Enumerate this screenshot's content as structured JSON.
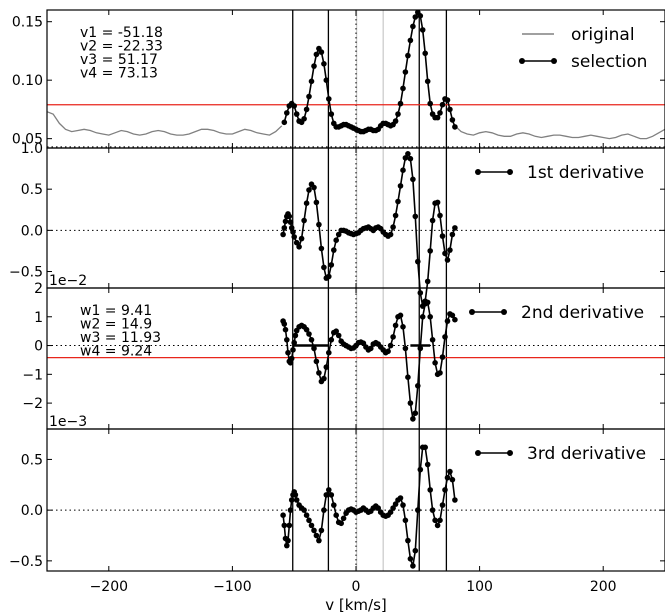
{
  "chart_data": {
    "type": "line",
    "x_axis": {
      "label": "v [km/s]",
      "range": [
        -250,
        250
      ],
      "ticks": [
        -200,
        -100,
        0,
        100,
        200
      ],
      "tick_labels": [
        "−200",
        "−100",
        "0",
        "100",
        "200"
      ]
    },
    "marker_lines": {
      "solid_vertical_x": [
        -51.18,
        -22.33,
        51.17,
        73.13
      ],
      "dotted_vertical_x": [
        0
      ],
      "light_vertical_x": [
        0.5,
        22
      ]
    },
    "colors": {
      "original": "#808080",
      "selection": "#000000",
      "threshold": "#e8251b",
      "light_marker": "#c8c8c8"
    },
    "panels": [
      {
        "id": "spectrum",
        "ylim": [
          0.042,
          0.16
        ],
        "yticks": [
          0.05,
          0.1,
          0.15
        ],
        "ytick_labels": [
          "0.05",
          "0.10",
          "0.15"
        ],
        "offset_label": "",
        "zero_line": 0.043,
        "threshold": 0.079,
        "annotations": [
          "v1 = -51.18",
          "v2 = -22.33",
          "v3 = 51.17",
          "v4 = 73.13"
        ],
        "legend": [
          {
            "label": "original",
            "style": "line",
            "color": "#808080"
          },
          {
            "label": "selection",
            "style": "line-marker",
            "color": "#000000"
          }
        ],
        "series": [
          {
            "role": "original",
            "x": [
              -250,
              -245,
              -240,
              -235,
              -230,
              -225,
              -220,
              -215,
              -210,
              -205,
              -200,
              -195,
              -190,
              -185,
              -180,
              -175,
              -170,
              -165,
              -160,
              -155,
              -150,
              -145,
              -140,
              -135,
              -130,
              -125,
              -120,
              -115,
              -110,
              -105,
              -100,
              -95,
              -90,
              -85,
              -80,
              -75,
              -70,
              -65,
              -60,
              80,
              85,
              90,
              95,
              100,
              105,
              110,
              115,
              120,
              125,
              130,
              135,
              140,
              145,
              150,
              155,
              160,
              165,
              170,
              175,
              180,
              185,
              190,
              195,
              200,
              205,
              210,
              215,
              220,
              225,
              230,
              235,
              240,
              245,
              250
            ],
            "y": [
              0.073,
              0.071,
              0.063,
              0.058,
              0.056,
              0.057,
              0.058,
              0.057,
              0.055,
              0.054,
              0.053,
              0.055,
              0.057,
              0.056,
              0.054,
              0.053,
              0.054,
              0.056,
              0.057,
              0.056,
              0.054,
              0.053,
              0.053,
              0.054,
              0.056,
              0.058,
              0.058,
              0.057,
              0.055,
              0.054,
              0.054,
              0.056,
              0.058,
              0.057,
              0.055,
              0.054,
              0.053,
              0.056,
              0.061,
              0.061,
              0.056,
              0.054,
              0.053,
              0.055,
              0.056,
              0.055,
              0.053,
              0.052,
              0.052,
              0.054,
              0.055,
              0.054,
              0.052,
              0.051,
              0.052,
              0.053,
              0.053,
              0.052,
              0.051,
              0.051,
              0.052,
              0.053,
              0.052,
              0.051,
              0.05,
              0.051,
              0.053,
              0.054,
              0.052,
              0.05,
              0.05,
              0.052,
              0.055,
              0.058
            ]
          },
          {
            "role": "selection",
            "x": [
              -58,
              -56,
              -54,
              -52,
              -50,
              -48,
              -46,
              -44,
              -42,
              -40,
              -38,
              -36,
              -34,
              -32,
              -30,
              -28,
              -26,
              -24,
              -22,
              -20,
              -18,
              -16,
              -14,
              -12,
              -10,
              -8,
              -6,
              -4,
              -2,
              0,
              2,
              4,
              6,
              8,
              10,
              12,
              14,
              16,
              18,
              20,
              22,
              24,
              26,
              28,
              30,
              32,
              34,
              36,
              38,
              40,
              42,
              44,
              46,
              48,
              50,
              52,
              54,
              56,
              58,
              60,
              62,
              64,
              66,
              68,
              70,
              72,
              74,
              76,
              78,
              80
            ],
            "y": [
              0.064,
              0.072,
              0.078,
              0.08,
              0.078,
              0.071,
              0.065,
              0.064,
              0.067,
              0.075,
              0.086,
              0.099,
              0.112,
              0.122,
              0.127,
              0.124,
              0.114,
              0.1,
              0.084,
              0.071,
              0.063,
              0.06,
              0.06,
              0.061,
              0.062,
              0.062,
              0.061,
              0.06,
              0.059,
              0.058,
              0.057,
              0.056,
              0.056,
              0.057,
              0.058,
              0.058,
              0.057,
              0.057,
              0.058,
              0.061,
              0.063,
              0.063,
              0.062,
              0.061,
              0.062,
              0.065,
              0.071,
              0.08,
              0.093,
              0.107,
              0.121,
              0.134,
              0.146,
              0.154,
              0.158,
              0.155,
              0.143,
              0.123,
              0.099,
              0.08,
              0.071,
              0.068,
              0.068,
              0.072,
              0.079,
              0.084,
              0.083,
              0.075,
              0.066,
              0.06
            ]
          }
        ]
      },
      {
        "id": "d1",
        "ylim": [
          -0.7,
          1.0
        ],
        "yticks": [
          -0.5,
          0,
          0.5,
          1.0
        ],
        "ytick_labels": [
          "−0.5",
          "0.0",
          "0.5",
          "1.0"
        ],
        "offset_label": "1e−2",
        "zero_line": 0,
        "legend": [
          {
            "label": "1st derivative",
            "style": "line-marker",
            "color": "#000000"
          }
        ],
        "series": [
          {
            "role": "selection",
            "x": [
              -59,
              -58,
              -57,
              -56,
              -55,
              -54,
              -53,
              -52,
              -51,
              -50,
              -48,
              -46,
              -44,
              -42,
              -40,
              -38,
              -36,
              -34,
              -32,
              -30,
              -28,
              -26,
              -24,
              -22,
              -20,
              -18,
              -16,
              -14,
              -12,
              -10,
              -8,
              -6,
              -4,
              -2,
              0,
              2,
              4,
              6,
              8,
              10,
              12,
              14,
              16,
              18,
              20,
              22,
              24,
              26,
              28,
              30,
              32,
              34,
              36,
              38,
              40,
              42,
              44,
              46,
              48,
              50,
              52,
              54,
              56,
              58,
              60,
              62,
              64,
              66,
              68,
              70,
              72,
              74,
              76,
              78,
              80
            ],
            "y": [
              -0.05,
              0.03,
              0.11,
              0.17,
              0.2,
              0.17,
              0.1,
              0.03,
              -0.02,
              -0.08,
              -0.15,
              -0.2,
              -0.1,
              0.12,
              0.33,
              0.49,
              0.56,
              0.52,
              0.34,
              0.07,
              -0.22,
              -0.45,
              -0.58,
              -0.56,
              -0.42,
              -0.24,
              -0.12,
              -0.05,
              0.0,
              0.0,
              -0.01,
              -0.03,
              -0.04,
              -0.05,
              -0.04,
              -0.03,
              0.0,
              0.02,
              0.03,
              0.04,
              0.02,
              0.0,
              0.03,
              0.04,
              0.02,
              -0.02,
              -0.05,
              -0.07,
              -0.05,
              0.04,
              0.18,
              0.35,
              0.54,
              0.73,
              0.88,
              0.93,
              0.87,
              0.62,
              0.17,
              -0.38,
              -0.76,
              -0.92,
              -0.86,
              -0.62,
              -0.25,
              0.12,
              0.33,
              0.34,
              0.18,
              -0.07,
              -0.28,
              -0.36,
              -0.24,
              -0.05,
              0.03
            ]
          }
        ]
      },
      {
        "id": "d2",
        "ylim": [
          -2.9,
          2.0
        ],
        "yticks": [
          -2,
          -1,
          0,
          1,
          2
        ],
        "ytick_labels": [
          "−2",
          "−1",
          "0",
          "1",
          "2"
        ],
        "offset_label": "1e−3",
        "zero_line": 0,
        "threshold": -0.42,
        "annotations": [
          "w1 = 9.41",
          "w2 = 14.9",
          "w3 = 11.93",
          "w4 = 9.24"
        ],
        "legend": [
          {
            "label": "2nd derivative",
            "style": "line-marker",
            "color": "#000000"
          }
        ],
        "flat_segments": [
          [
            -51,
            -22
          ],
          [
            44,
            60
          ]
        ],
        "series": [
          {
            "role": "selection",
            "x": [
              -59,
              -58,
              -57,
              -56,
              -55,
              -54,
              -53,
              -52,
              -51,
              -50,
              -49,
              -48,
              -46,
              -44,
              -42,
              -40,
              -38,
              -36,
              -34,
              -32,
              -30,
              -28,
              -26,
              -24,
              -22,
              -20,
              -18,
              -16,
              -14,
              -12,
              -10,
              -8,
              -6,
              -4,
              -2,
              0,
              2,
              4,
              6,
              8,
              10,
              12,
              14,
              16,
              18,
              20,
              22,
              24,
              26,
              28,
              30,
              32,
              34,
              36,
              38,
              40,
              42,
              44,
              46,
              48,
              50,
              52,
              54,
              56,
              58,
              60,
              62,
              64,
              66,
              68,
              70,
              72,
              74,
              76,
              78,
              80
            ],
            "y": [
              0.85,
              0.75,
              0.55,
              0.2,
              -0.25,
              -0.55,
              -0.6,
              -0.45,
              -0.15,
              0.1,
              0.35,
              0.52,
              0.65,
              0.7,
              0.65,
              0.55,
              0.4,
              0.2,
              -0.1,
              -0.55,
              -0.95,
              -1.25,
              -1.15,
              -0.75,
              -0.25,
              0.2,
              0.45,
              0.5,
              0.35,
              0.15,
              0.05,
              0.0,
              -0.05,
              -0.1,
              -0.08,
              0.0,
              0.1,
              0.12,
              0.08,
              -0.05,
              -0.15,
              -0.1,
              0.05,
              0.1,
              0.05,
              -0.05,
              -0.15,
              -0.25,
              -0.2,
              0.0,
              0.3,
              0.7,
              1.0,
              1.05,
              0.65,
              -0.1,
              -1.1,
              -2.0,
              -2.55,
              -2.35,
              -1.4,
              -0.1,
              1.0,
              1.45,
              1.5,
              1.0,
              0.2,
              -0.6,
              -1.0,
              -0.95,
              -0.4,
              0.3,
              0.85,
              1.1,
              1.05,
              0.9
            ]
          }
        ]
      },
      {
        "id": "d3",
        "ylim": [
          -0.6,
          0.8
        ],
        "yticks": [
          -0.5,
          0,
          0.5
        ],
        "ytick_labels": [
          "−0.5",
          "0.0",
          "0.5"
        ],
        "offset_label": "",
        "zero_line": 0,
        "legend": [
          {
            "label": "3rd derivative",
            "style": "line-marker",
            "color": "#000000"
          }
        ],
        "series": [
          {
            "role": "selection",
            "x": [
              -59,
              -58,
              -57,
              -56,
              -55,
              -54,
              -53,
              -52,
              -51,
              -50,
              -49,
              -48,
              -46,
              -44,
              -42,
              -40,
              -38,
              -36,
              -34,
              -32,
              -30,
              -28,
              -26,
              -24,
              -22,
              -20,
              -18,
              -16,
              -14,
              -12,
              -10,
              -8,
              -6,
              -4,
              -2,
              0,
              2,
              4,
              6,
              8,
              10,
              12,
              14,
              16,
              18,
              20,
              22,
              24,
              26,
              28,
              30,
              32,
              34,
              36,
              38,
              40,
              42,
              44,
              46,
              48,
              50,
              52,
              54,
              56,
              58,
              60,
              62,
              64,
              66,
              68,
              70,
              72,
              74,
              76,
              78,
              80
            ],
            "y": [
              -0.05,
              -0.15,
              -0.28,
              -0.35,
              -0.3,
              -0.15,
              0.0,
              0.1,
              0.15,
              0.18,
              0.15,
              0.1,
              0.05,
              0.02,
              0.0,
              -0.05,
              -0.1,
              -0.15,
              -0.2,
              -0.25,
              -0.3,
              -0.2,
              0.0,
              0.15,
              0.2,
              0.15,
              0.05,
              -0.05,
              -0.12,
              -0.13,
              -0.08,
              -0.03,
              0.0,
              0.01,
              0.0,
              -0.02,
              -0.01,
              0.0,
              0.02,
              0.0,
              -0.02,
              -0.01,
              0.02,
              0.04,
              0.02,
              -0.02,
              -0.05,
              -0.06,
              -0.05,
              -0.02,
              0.02,
              0.06,
              0.1,
              0.12,
              0.05,
              -0.1,
              -0.3,
              -0.48,
              -0.55,
              -0.4,
              0.0,
              0.4,
              0.62,
              0.62,
              0.45,
              0.2,
              0.0,
              -0.1,
              -0.15,
              -0.1,
              0.05,
              0.2,
              0.32,
              0.38,
              0.3,
              0.1
            ]
          }
        ]
      }
    ]
  }
}
